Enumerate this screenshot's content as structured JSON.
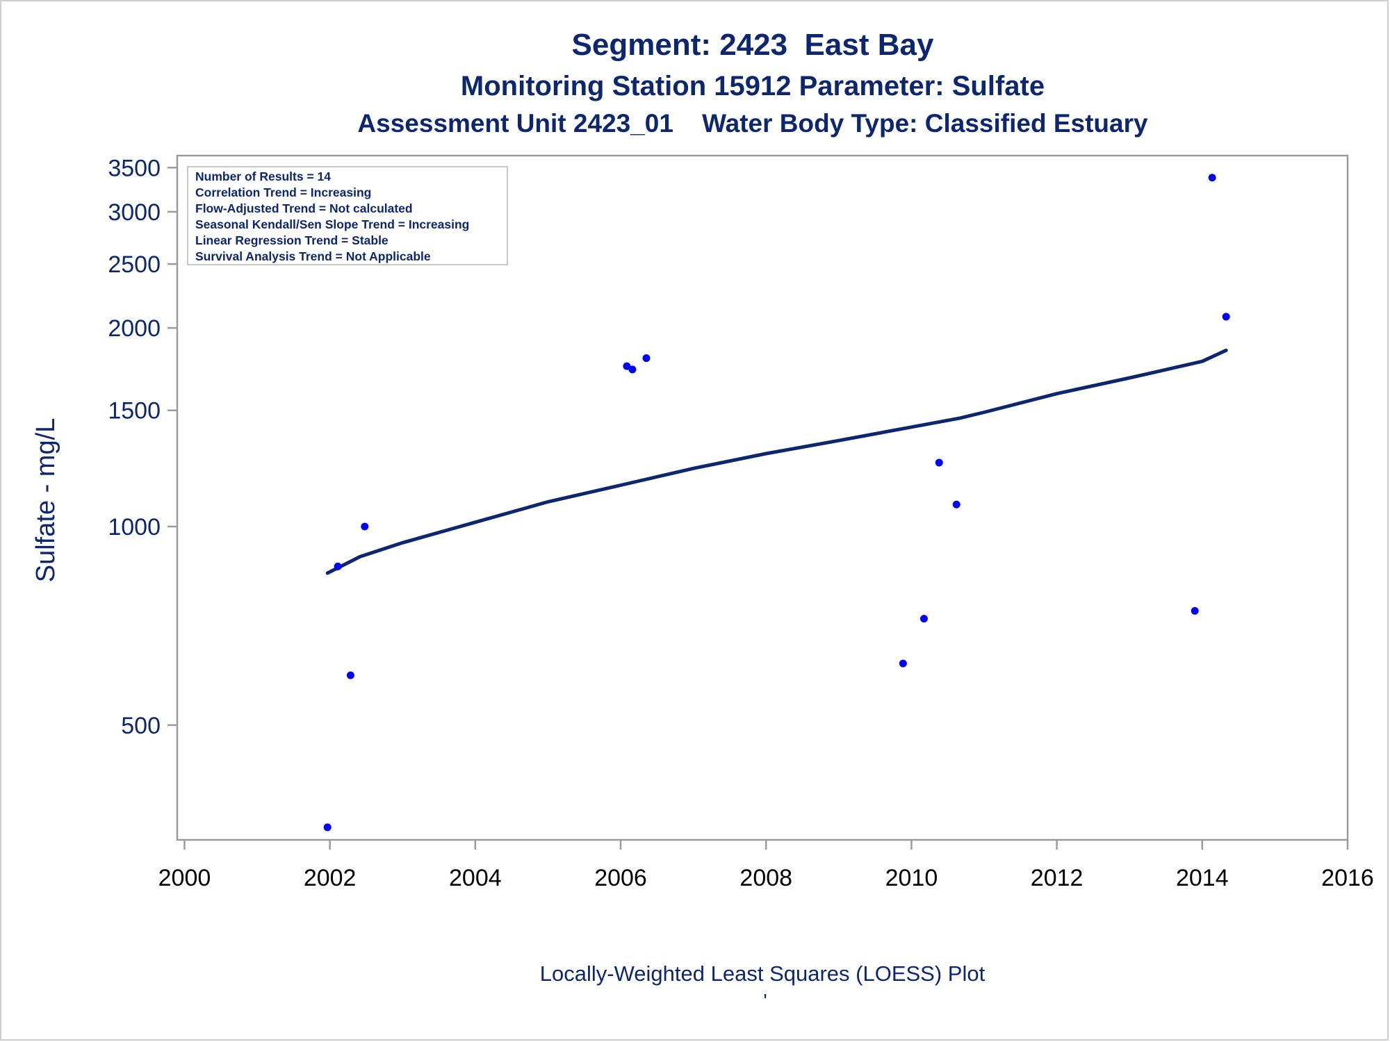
{
  "chart_data": {
    "type": "scatter",
    "title": "Segment: 2423  East Bay",
    "subtitle": "Monitoring Station 15912 Parameter: Sulfate",
    "subtitle2": "Assessment Unit 2423_01    Water Body Type: Classified Estuary",
    "ylabel": "Sulfate - mg/L",
    "xlabel": "",
    "footnote": "Locally-Weighted Least Squares (LOESS) Plot",
    "footnote_mark": "'",
    "yscale": "log",
    "xlim": [
      1999.9,
      2016.0
    ],
    "ylim": [
      335,
      3650
    ],
    "x_ticks": [
      2000,
      2002,
      2004,
      2006,
      2008,
      2010,
      2012,
      2014,
      2016
    ],
    "y_ticks": [
      500,
      1000,
      1500,
      2000,
      2500,
      3000,
      3500
    ],
    "grid": false,
    "info_box": {
      "placement": "top-left",
      "lines": [
        "Number of Results = 14",
        "Correlation Trend = Increasing",
        "Flow-Adjusted Trend = Not calculated",
        "Seasonal Kendall/Sen Slope Trend = Increasing",
        "Linear Regression Trend = Stable",
        "Survival Analysis Trend = Not Applicable"
      ]
    },
    "series": [
      {
        "kind": "points",
        "color": "#0000ff",
        "x": [
          "2001-12-20",
          "2002-02-10",
          "2002-04-15",
          "2002-06-25",
          "2006-02-01",
          "2006-03-01",
          "2006-05-10",
          "2009-11-20",
          "2010-03-05",
          "2010-05-20",
          "2010-08-15",
          "2013-11-25",
          "2014-02-20",
          "2014-05-01"
        ],
        "y": [
          350,
          870,
          595,
          1000,
          1750,
          1730,
          1800,
          620,
          725,
          1250,
          1080,
          745,
          3380,
          2080
        ]
      },
      {
        "kind": "line",
        "color": "#0d2670",
        "x": [
          "2001-12-20",
          "2002-06-01",
          "2003-01-01",
          "2004-01-01",
          "2005-01-01",
          "2006-01-01",
          "2007-01-01",
          "2008-01-01",
          "2009-01-01",
          "2010-01-01",
          "2010-09-01",
          "2011-01-01",
          "2012-01-01",
          "2013-01-01",
          "2014-01-01",
          "2014-05-01"
        ],
        "y": [
          850,
          900,
          945,
          1015,
          1090,
          1155,
          1225,
          1290,
          1350,
          1415,
          1460,
          1490,
          1590,
          1680,
          1780,
          1850
        ]
      }
    ]
  }
}
